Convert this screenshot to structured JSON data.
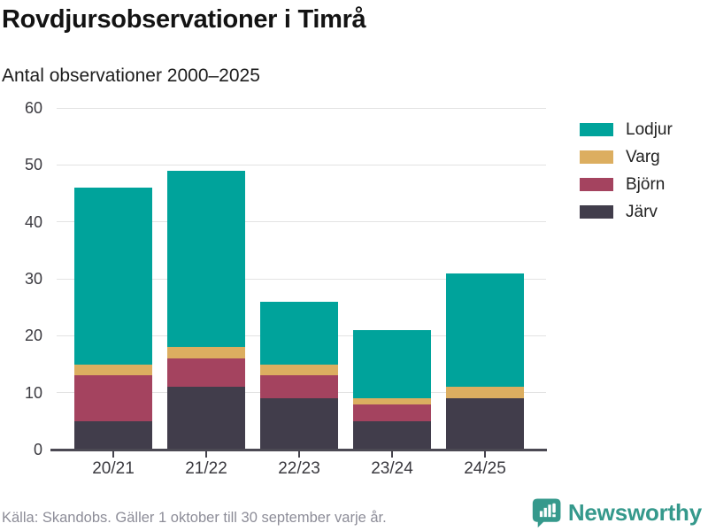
{
  "header": {
    "title": "Rovdjursobservationer i Timrå",
    "subtitle": "Antal observationer 2000–2025"
  },
  "chart_data": {
    "type": "bar",
    "stacked": true,
    "title": "Rovdjursobservationer i Timrå",
    "subtitle": "Antal observationer 2000–2025",
    "categories": [
      "20/21",
      "21/22",
      "22/23",
      "23/24",
      "24/25"
    ],
    "series": [
      {
        "name": "Järv",
        "color": "#413d4b",
        "values": [
          5,
          11,
          9,
          5,
          9
        ]
      },
      {
        "name": "Björn",
        "color": "#a4435f",
        "values": [
          8,
          5,
          4,
          3,
          0
        ]
      },
      {
        "name": "Varg",
        "color": "#dcae60",
        "values": [
          2,
          2,
          2,
          1,
          2
        ]
      },
      {
        "name": "Lodjur",
        "color": "#00a39b",
        "values": [
          31,
          31,
          11,
          12,
          20
        ]
      }
    ],
    "totals": [
      46,
      49,
      26,
      21,
      31
    ],
    "legend_order": [
      "Lodjur",
      "Varg",
      "Björn",
      "Järv"
    ],
    "legend_position": "right",
    "xlabel": "",
    "ylabel": "",
    "ylim": [
      0,
      60
    ],
    "yticks": [
      0,
      10,
      20,
      30,
      40,
      50,
      60
    ],
    "grid": true
  },
  "footer": {
    "source_note": "Källa: Skandobs. Gäller 1 oktober till 30 september varje år."
  },
  "branding": {
    "logo_text": "Newsworthy",
    "logo_color": "#35998c"
  },
  "colors": {
    "background": "#ffffff",
    "gridline": "#e3e3e3",
    "axis_line": "#4b4953",
    "axis_text": "#3a393f",
    "title_text": "#131313",
    "footer_text": "#8d8d98"
  }
}
